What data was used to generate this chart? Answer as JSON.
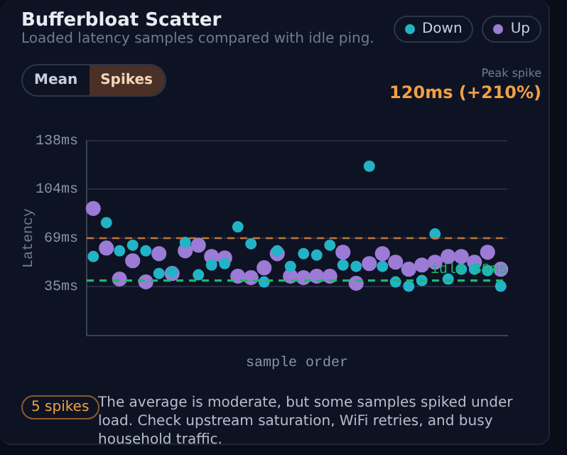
{
  "chart_data": {
    "type": "scatter",
    "title": "Bufferbloat Scatter",
    "subtitle": "Loaded latency samples compared with idle ping.",
    "xlabel": "sample order",
    "ylabel": "Latency",
    "categories": [
      null,
      null,
      null,
      null,
      null,
      null,
      null,
      null,
      null,
      null,
      null,
      null,
      null,
      null,
      null,
      null,
      null,
      null,
      null,
      null,
      null,
      null,
      null,
      null,
      null,
      null,
      null,
      null,
      null,
      null,
      null,
      null
    ],
    "series": [
      {
        "name": "Down",
        "color": "#22b3c6",
        "values": [
          56,
          80,
          60,
          64,
          60,
          44,
          45,
          66,
          43,
          50,
          51,
          77,
          65,
          38,
          60,
          49,
          58,
          57,
          64,
          50,
          49,
          120,
          49,
          38,
          35,
          39,
          72,
          40,
          47,
          47,
          46,
          35
        ]
      },
      {
        "name": "Up",
        "color": "#9b7bd6",
        "values": [
          90,
          62,
          40,
          53,
          38,
          58,
          44,
          60,
          64,
          56,
          55,
          42,
          41,
          48,
          58,
          42,
          41,
          42,
          42,
          59,
          37,
          51,
          58,
          52,
          47,
          50,
          52,
          56,
          56,
          52,
          59,
          47
        ]
      }
    ],
    "ylim": [
      0,
      138
    ],
    "yticks": [
      {
        "value": 35,
        "label": "35ms"
      },
      {
        "value": 69,
        "label": "69ms"
      },
      {
        "value": 104,
        "label": "104ms"
      },
      {
        "value": 138,
        "label": "138ms"
      }
    ],
    "grid": "y",
    "legend": "top right",
    "marker": "circle",
    "ref_lines": [
      {
        "axis": "y",
        "value": 69,
        "color": "#c0773a",
        "line_style": "dashed"
      },
      {
        "axis": "y",
        "value": 39,
        "label": "idle 39ms",
        "color": "#1fb86a",
        "line_style": "dashed"
      }
    ],
    "annotations": [
      "Mean",
      "Spikes",
      "Peak spike",
      "120ms (+210%)",
      "5 spikes",
      "The average is moderate, but some samples spiked under load. Check upstream saturation, WiFi retries, and busy household traffic."
    ]
  }
}
